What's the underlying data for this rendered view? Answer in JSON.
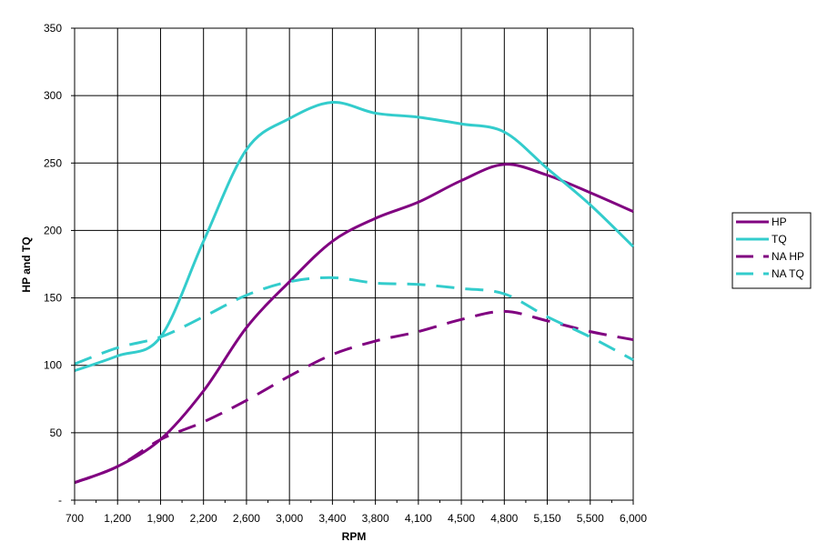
{
  "chart_data": {
    "type": "line",
    "title": "",
    "xlabel": "RPM",
    "ylabel": "HP and TQ",
    "ylim": [
      0,
      350
    ],
    "yticks": [
      0,
      50,
      100,
      150,
      200,
      250,
      300,
      350
    ],
    "ytick_labels": [
      "-",
      "50",
      "100",
      "150",
      "200",
      "250",
      "300",
      "350"
    ],
    "grid": true,
    "legend_position": "right",
    "categories": [
      "700",
      "1,200",
      "1,900",
      "2,200",
      "2,600",
      "3,000",
      "3,400",
      "3,800",
      "4,100",
      "4,500",
      "4,800",
      "5,150",
      "5,500",
      "6,000"
    ],
    "series": [
      {
        "name": "HP",
        "color": "#800080",
        "dash": false,
        "values": [
          13,
          25,
          45,
          81,
          128,
          162,
          192,
          209,
          221,
          237,
          249,
          241,
          228,
          214
        ]
      },
      {
        "name": "TQ",
        "color": "#33CCCC",
        "dash": false,
        "values": [
          96,
          107,
          121,
          192,
          260,
          283,
          295,
          287,
          284,
          279,
          273,
          246,
          219,
          188
        ]
      },
      {
        "name": "NA HP",
        "color": "#800080",
        "dash": true,
        "values": [
          13,
          25,
          45,
          58,
          74,
          92,
          108,
          118,
          125,
          134,
          140,
          133,
          125,
          119
        ]
      },
      {
        "name": "NA TQ",
        "color": "#33CCCC",
        "dash": true,
        "values": [
          101,
          113,
          121,
          136,
          152,
          162,
          165,
          161,
          160,
          157,
          153,
          136,
          121,
          104
        ]
      }
    ]
  }
}
